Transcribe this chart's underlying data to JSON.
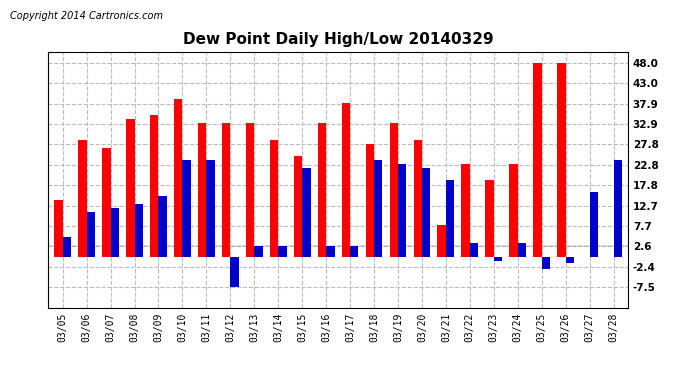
{
  "title": "Dew Point Daily High/Low 20140329",
  "copyright": "Copyright 2014 Cartronics.com",
  "dates": [
    "03/05",
    "03/06",
    "03/07",
    "03/08",
    "03/09",
    "03/10",
    "03/11",
    "03/12",
    "03/13",
    "03/14",
    "03/15",
    "03/16",
    "03/17",
    "03/18",
    "03/19",
    "03/20",
    "03/21",
    "03/22",
    "03/23",
    "03/24",
    "03/25",
    "03/26",
    "03/27",
    "03/28"
  ],
  "high": [
    14.0,
    29.0,
    27.0,
    34.0,
    35.0,
    39.0,
    33.0,
    33.0,
    33.0,
    29.0,
    25.0,
    33.0,
    38.0,
    28.0,
    33.0,
    29.0,
    8.0,
    23.0,
    19.0,
    23.0,
    48.0,
    48.0,
    0,
    0
  ],
  "low": [
    5.0,
    11.0,
    12.0,
    13.0,
    15.0,
    24.0,
    24.0,
    -7.5,
    2.6,
    2.6,
    22.0,
    2.6,
    2.6,
    24.0,
    23.0,
    22.0,
    19.0,
    3.5,
    -1.0,
    3.5,
    -3.0,
    -1.5,
    16.0,
    24.0
  ],
  "high_color": "#ff0000",
  "low_color": "#0000cc",
  "bg_color": "#ffffff",
  "ylim": [
    -12.5,
    50.5
  ],
  "yticks": [
    -7.5,
    -2.4,
    2.6,
    7.7,
    12.7,
    17.8,
    22.8,
    27.8,
    32.9,
    37.9,
    43.0,
    48.0
  ],
  "grid_color": "#bbbbbb",
  "title_fontsize": 11,
  "copyright_fontsize": 7,
  "bar_width": 0.35
}
